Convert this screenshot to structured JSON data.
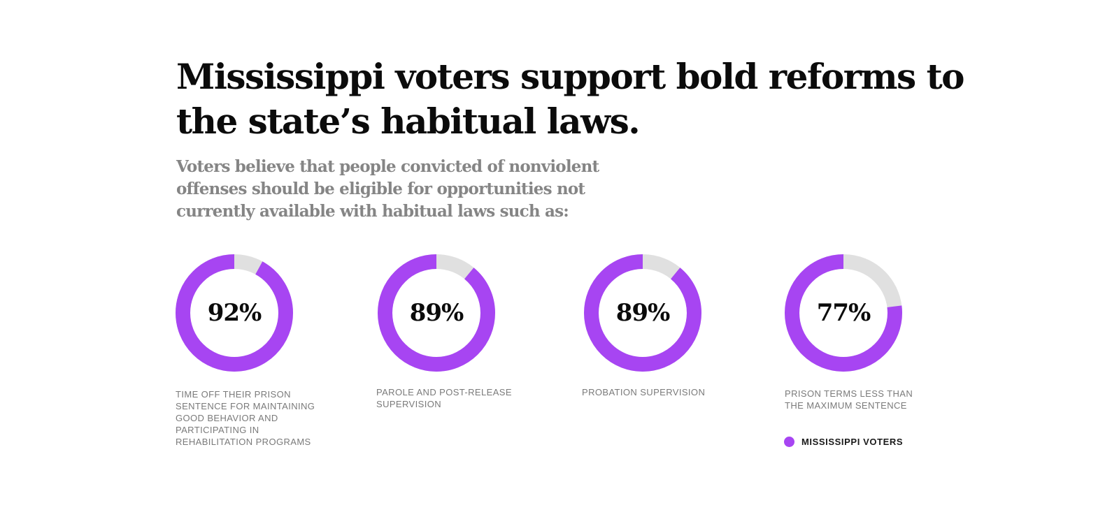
{
  "header": {
    "title": "Mississippi voters support bold reforms to the state’s habitual laws.",
    "subtitle": "Voters believe that people convicted of nonviolent offenses should be eligible for opportunities not currently available with habitual laws such as:"
  },
  "colors": {
    "accent": "#A745F2",
    "track": "#E0E0E0",
    "title": "#0B0B0B",
    "subtitle": "#858585",
    "label": "#7A7A7A"
  },
  "legend": {
    "label": "MISSISSIPPI VOTERS",
    "color": "#A745F2"
  },
  "chart_data": {
    "type": "pie",
    "subtype": "donut",
    "title": "Mississippi voters support bold reforms to the state’s habitual laws.",
    "subtitle": "Voters believe that people convicted of nonviolent offenses should be eligible for opportunities not currently available with habitual laws such as:",
    "legend": [
      "Mississippi Voters"
    ],
    "legend_position": "bottom-right",
    "series": [
      {
        "name": "Mississippi Voters",
        "values": [
          92,
          89,
          89,
          77
        ]
      }
    ],
    "categories": [
      "Time off their prison sentence for maintaining good behavior and participating in rehabilitation programs",
      "Parole and post-release supervision",
      "Probation supervision",
      "Prison terms less than the maximum sentence"
    ],
    "items": [
      {
        "value": 92,
        "display": "92%",
        "label": "Time off their prison sentence for maintaining good behavior and participating in rehabilitation programs"
      },
      {
        "value": 89,
        "display": "89%",
        "label": "Parole and post-release supervision"
      },
      {
        "value": 89,
        "display": "89%",
        "label": "Probation supervision"
      },
      {
        "value": 77,
        "display": "77%",
        "label": "Prison terms less than the maximum sentence"
      }
    ],
    "unit": "%"
  }
}
